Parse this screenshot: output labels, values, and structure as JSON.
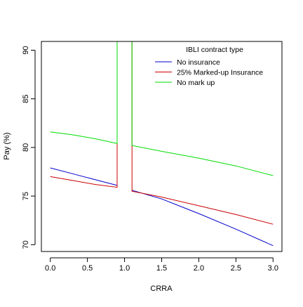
{
  "chart_data": {
    "type": "line",
    "title": "",
    "xlabel": "CRRA",
    "ylabel": "Pay (%)",
    "xlim": [
      -0.12,
      3.12
    ],
    "ylim": [
      69.3,
      90.9
    ],
    "x_ticks": [
      0.0,
      0.5,
      1.0,
      1.5,
      2.0,
      2.5,
      3.0
    ],
    "x_tick_labels": [
      "0.0",
      "0.5",
      "1.0",
      "1.5",
      "2.0",
      "2.5",
      "3.0"
    ],
    "y_ticks": [
      70,
      75,
      80,
      85,
      90
    ],
    "y_tick_labels": [
      "70",
      "75",
      "80",
      "85",
      "90"
    ],
    "grid": false,
    "legend": {
      "title": "IBLI contract type",
      "position": "top-right",
      "entries": [
        {
          "name": "No insurance",
          "color": "#0000cc"
        },
        {
          "name": "25% Marked-up Insurance",
          "color": "#cc0000"
        },
        {
          "name": "No mark up",
          "color": "#00dd00"
        }
      ]
    },
    "series": [
      {
        "name": "No insurance",
        "color": "#0000cc",
        "segments": [
          {
            "x": [
              0.0,
              0.3,
              0.6,
              0.9
            ],
            "y": [
              77.9,
              77.3,
              76.7,
              76.1
            ]
          },
          {
            "x": [
              1.1,
              1.5,
              2.0,
              2.5,
              3.0
            ],
            "y": [
              75.6,
              74.7,
              73.2,
              71.6,
              69.9
            ]
          }
        ]
      },
      {
        "name": "25% Marked-up Insurance",
        "color": "#cc0000",
        "segments": [
          {
            "x": [
              0.0,
              0.3,
              0.6,
              0.9,
              0.9
            ],
            "y": [
              77.0,
              76.6,
              76.2,
              75.9,
              90.9
            ]
          },
          {
            "x": [
              1.1,
              1.1,
              1.5,
              2.0,
              2.5,
              3.0
            ],
            "y": [
              90.9,
              75.5,
              74.9,
              74.0,
              73.1,
              72.1
            ]
          }
        ]
      },
      {
        "name": "No mark up",
        "color": "#00dd00",
        "segments": [
          {
            "x": [
              0.0,
              0.3,
              0.6,
              0.9,
              0.9
            ],
            "y": [
              81.6,
              81.3,
              80.9,
              80.4,
              90.9
            ]
          },
          {
            "x": [
              1.1,
              1.1,
              1.5,
              2.0,
              2.5,
              3.0
            ],
            "y": [
              90.9,
              80.2,
              79.6,
              78.9,
              78.1,
              77.1
            ]
          }
        ]
      }
    ]
  }
}
